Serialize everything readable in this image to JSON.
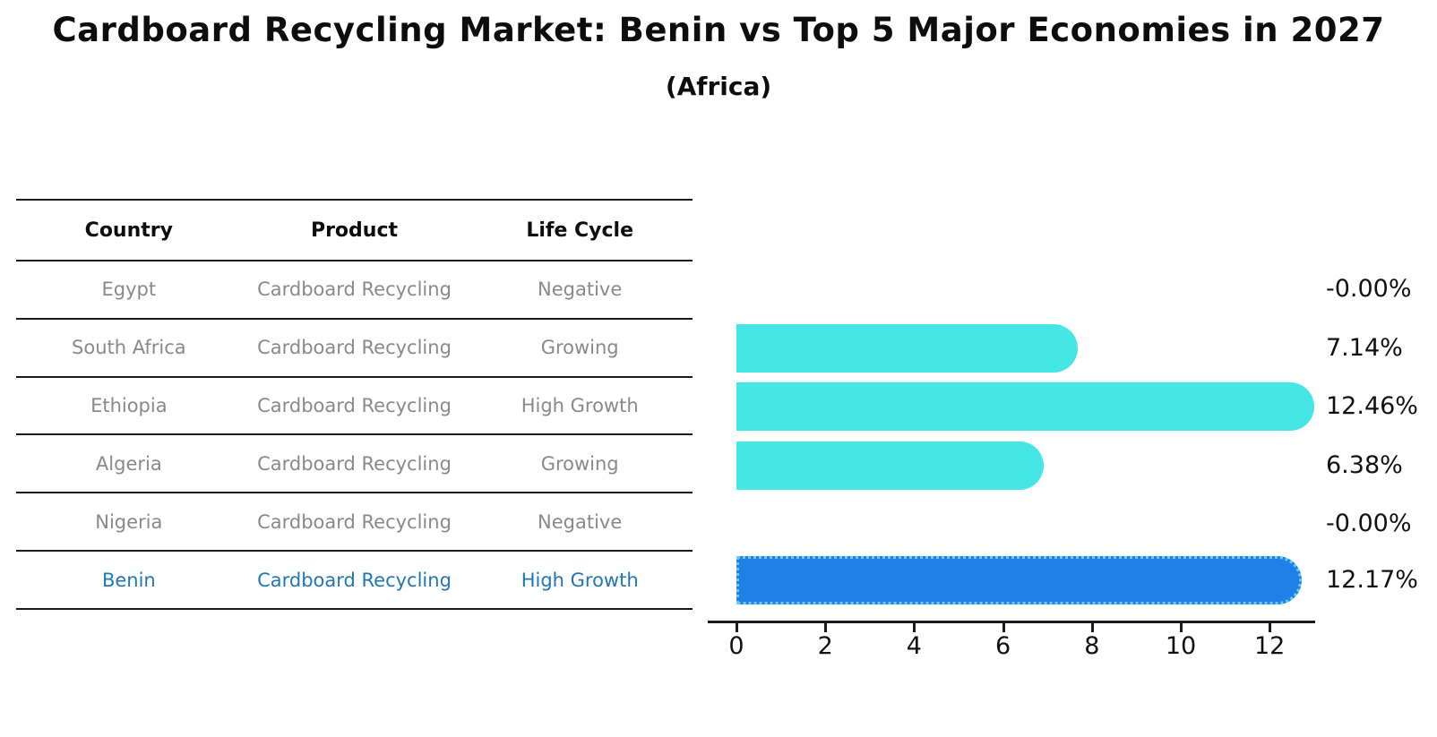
{
  "title": "Cardboard Recycling Market: Benin vs Top 5 Major Economies in 2027",
  "subtitle": "(Africa)",
  "table": {
    "headers": [
      "Country",
      "Product",
      "Life Cycle"
    ],
    "rows": [
      {
        "country": "Egypt",
        "product": "Cardboard Recycling",
        "life_cycle": "Negative",
        "highlight": false
      },
      {
        "country": "South Africa",
        "product": "Cardboard Recycling",
        "life_cycle": "Growing",
        "highlight": false
      },
      {
        "country": "Ethiopia",
        "product": "Cardboard Recycling",
        "life_cycle": "High Growth",
        "highlight": false
      },
      {
        "country": "Algeria",
        "product": "Cardboard Recycling",
        "life_cycle": "Growing",
        "highlight": false
      },
      {
        "country": "Nigeria",
        "product": "Cardboard Recycling",
        "life_cycle": "Negative",
        "highlight": false
      },
      {
        "country": "Benin",
        "product": "Cardboard Recycling",
        "life_cycle": "High Growth",
        "highlight": true
      }
    ]
  },
  "chart_data": {
    "type": "bar",
    "orientation": "horizontal",
    "categories": [
      "Egypt",
      "South Africa",
      "Ethiopia",
      "Algeria",
      "Nigeria",
      "Benin"
    ],
    "values": [
      -0.0,
      7.14,
      12.46,
      6.38,
      -0.0,
      12.17
    ],
    "value_labels": [
      "-0.00%",
      "7.14%",
      "12.46%",
      "6.38%",
      "-0.00%",
      "12.17%"
    ],
    "highlight_index": 5,
    "x_ticks": [
      0,
      2,
      4,
      6,
      8,
      10,
      12
    ],
    "xlim": [
      0,
      13.1
    ],
    "grid": false,
    "legend": "none",
    "bar_color": "#46e6e6",
    "highlight_bar_color": "#1f80e8",
    "highlight_text_color": "#1f77b4"
  }
}
